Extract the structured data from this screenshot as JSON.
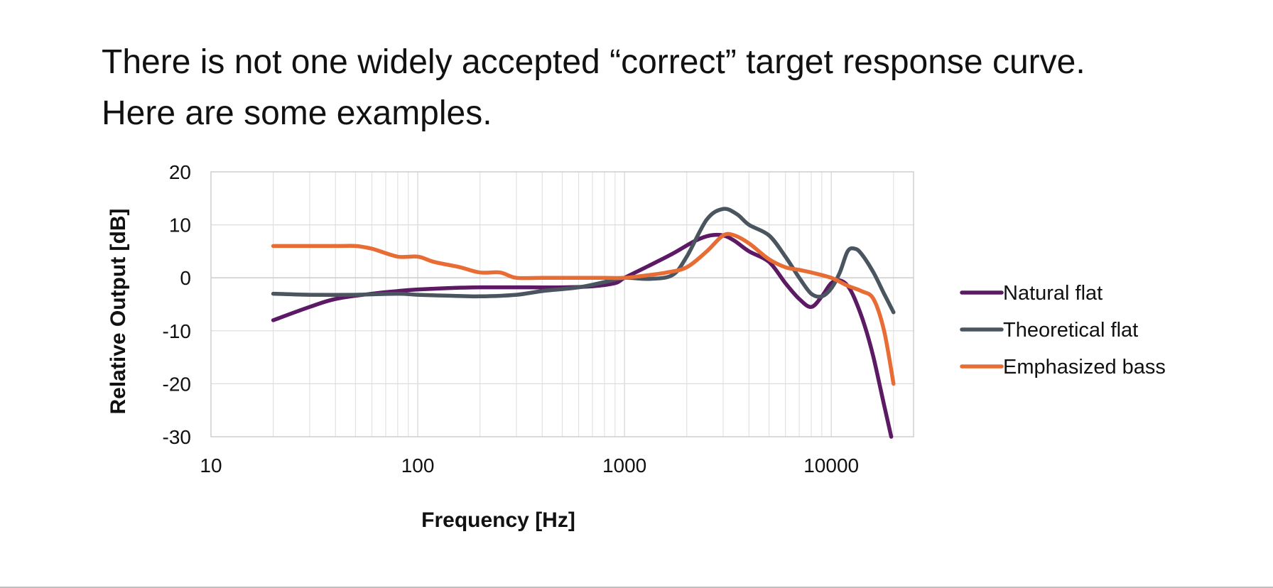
{
  "slide": {
    "title_line1": "There is not one widely accepted “correct” target response curve.",
    "title_line2": "Here are some examples."
  },
  "chart_data": {
    "type": "line",
    "title": "",
    "xlabel": "Frequency [Hz]",
    "ylabel": "Relative Output [dB]",
    "x_scale": "log",
    "xlim": [
      10,
      25000
    ],
    "ylim": [
      -30,
      20
    ],
    "x_ticks": [
      10,
      100,
      1000,
      10000
    ],
    "x_tick_labels": [
      "10",
      "100",
      "1000",
      "10000"
    ],
    "y_ticks": [
      20,
      10,
      0,
      -10,
      -20,
      -30
    ],
    "y_tick_labels": [
      "20",
      "10",
      "0",
      "-10",
      "-20",
      "-30"
    ],
    "grid": true,
    "legend_position": "right",
    "series": [
      {
        "name": "Natural flat",
        "color": "#5b1a63",
        "points": [
          [
            20,
            -8
          ],
          [
            30,
            -5.5
          ],
          [
            40,
            -4
          ],
          [
            60,
            -3
          ],
          [
            80,
            -2.5
          ],
          [
            100,
            -2.2
          ],
          [
            150,
            -1.9
          ],
          [
            200,
            -1.8
          ],
          [
            300,
            -1.8
          ],
          [
            500,
            -1.8
          ],
          [
            700,
            -1.6
          ],
          [
            900,
            -1
          ],
          [
            1000,
            0
          ],
          [
            1300,
            2.2
          ],
          [
            1700,
            4.5
          ],
          [
            2200,
            7
          ],
          [
            2600,
            8
          ],
          [
            3000,
            8
          ],
          [
            3400,
            7
          ],
          [
            4000,
            5
          ],
          [
            5000,
            3
          ],
          [
            6000,
            -1
          ],
          [
            7000,
            -4
          ],
          [
            8000,
            -5.5
          ],
          [
            9000,
            -3.5
          ],
          [
            10000,
            -1
          ],
          [
            11000,
            -0.5
          ],
          [
            12000,
            -1.5
          ],
          [
            13000,
            -4
          ],
          [
            14500,
            -9
          ],
          [
            16000,
            -15
          ],
          [
            18000,
            -24
          ],
          [
            19500,
            -30
          ]
        ]
      },
      {
        "name": "Theoretical flat",
        "color": "#4a5560",
        "points": [
          [
            20,
            -3
          ],
          [
            30,
            -3.2
          ],
          [
            50,
            -3.2
          ],
          [
            80,
            -3
          ],
          [
            100,
            -3.2
          ],
          [
            150,
            -3.4
          ],
          [
            200,
            -3.5
          ],
          [
            300,
            -3.2
          ],
          [
            400,
            -2.5
          ],
          [
            600,
            -1.8
          ],
          [
            800,
            -0.8
          ],
          [
            1000,
            0
          ],
          [
            1300,
            -0.2
          ],
          [
            1700,
            0.5
          ],
          [
            2000,
            4
          ],
          [
            2500,
            11
          ],
          [
            3000,
            13
          ],
          [
            3500,
            12
          ],
          [
            4000,
            10
          ],
          [
            5000,
            8
          ],
          [
            6000,
            4
          ],
          [
            7000,
            0
          ],
          [
            8000,
            -3
          ],
          [
            9000,
            -3.5
          ],
          [
            10000,
            -2
          ],
          [
            11000,
            1
          ],
          [
            12000,
            5
          ],
          [
            13000,
            5.5
          ],
          [
            14000,
            4.5
          ],
          [
            16000,
            1
          ],
          [
            18000,
            -3
          ],
          [
            20000,
            -6.5
          ]
        ]
      },
      {
        "name": "Emphasized bass",
        "color": "#e86d35",
        "points": [
          [
            20,
            6
          ],
          [
            40,
            6
          ],
          [
            50,
            6
          ],
          [
            60,
            5.5
          ],
          [
            80,
            4
          ],
          [
            100,
            4
          ],
          [
            120,
            3
          ],
          [
            160,
            2
          ],
          [
            200,
            1
          ],
          [
            250,
            1
          ],
          [
            300,
            0
          ],
          [
            400,
            0
          ],
          [
            600,
            0
          ],
          [
            800,
            0
          ],
          [
            1000,
            0
          ],
          [
            1300,
            0.5
          ],
          [
            1600,
            1
          ],
          [
            2000,
            2
          ],
          [
            2500,
            5
          ],
          [
            3000,
            8
          ],
          [
            3400,
            8
          ],
          [
            4000,
            6.5
          ],
          [
            5000,
            3.5
          ],
          [
            6000,
            2
          ],
          [
            7000,
            1.5
          ],
          [
            8000,
            1
          ],
          [
            10000,
            0
          ],
          [
            12000,
            -1.5
          ],
          [
            14000,
            -2.5
          ],
          [
            16000,
            -4
          ],
          [
            18000,
            -10
          ],
          [
            20000,
            -20
          ]
        ]
      }
    ]
  }
}
